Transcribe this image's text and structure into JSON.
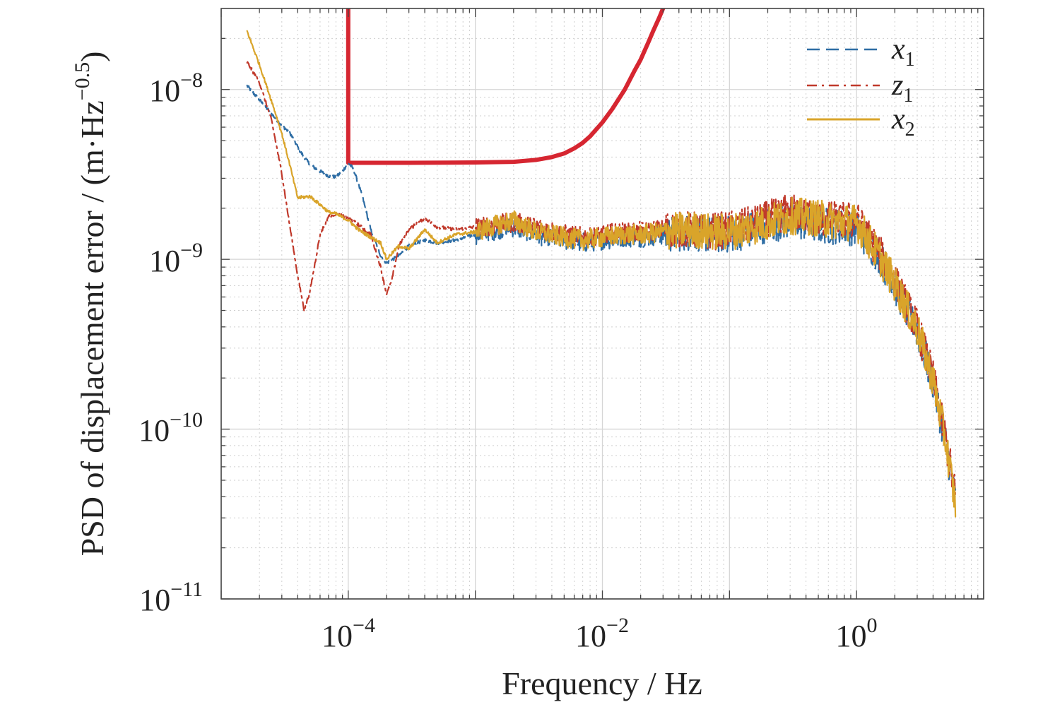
{
  "chart_data": {
    "type": "line",
    "xlabel": "Frequency / Hz",
    "ylabel": "PSD of displacement error / (m·Hz",
    "ylabel_exponent": "−0.5",
    "ylabel_suffix": ")",
    "x_scale": "log",
    "y_scale": "log",
    "xlim": [
      1e-05,
      10
    ],
    "ylim": [
      1e-11,
      3e-08
    ],
    "grid": true,
    "legend_position": "top-right",
    "x_ticks": [
      {
        "value": 0.0001,
        "base": "10",
        "exp": "−4"
      },
      {
        "value": 0.01,
        "base": "10",
        "exp": "−2"
      },
      {
        "value": 1,
        "base": "10",
        "exp": "0"
      }
    ],
    "y_ticks": [
      {
        "value": 1e-08,
        "base": "10",
        "exp": "−8"
      },
      {
        "value": 1e-09,
        "base": "10",
        "exp": "−9"
      },
      {
        "value": 1e-10,
        "base": "10",
        "exp": "−10"
      },
      {
        "value": 1e-11,
        "base": "10",
        "exp": "−11"
      }
    ],
    "series": [
      {
        "name": "x",
        "subscript": "1",
        "color": "#2e6da4",
        "style": "dashed",
        "x": [
          1.6e-05,
          2.2e-05,
          2.8e-05,
          3.5e-05,
          4.2e-05,
          5e-05,
          6e-05,
          7e-05,
          8e-05,
          9e-05,
          0.0001,
          0.00011,
          0.00013,
          0.00015,
          0.00018,
          0.0002,
          0.00025,
          0.0003,
          0.0004,
          0.0005,
          0.0007,
          0.001,
          0.0015,
          0.002,
          0.003,
          0.005,
          0.007,
          0.01,
          0.015,
          0.02,
          0.03,
          0.05,
          0.07,
          0.1,
          0.15,
          0.2,
          0.3,
          0.5,
          0.7,
          1.0,
          1.2,
          1.5,
          2,
          3,
          4,
          5,
          6
        ],
        "y": [
          1.05e-08,
          8e-09,
          6.5e-09,
          5.5e-09,
          4.3e-09,
          3.6e-09,
          3.3e-09,
          3.1e-09,
          3.05e-09,
          3.3e-09,
          3.7e-09,
          3.4e-09,
          2.3e-09,
          1.5e-09,
          1.05e-09,
          9.5e-10,
          1.05e-09,
          1.2e-09,
          1.3e-09,
          1.25e-09,
          1.3e-09,
          1.4e-09,
          1.5e-09,
          1.55e-09,
          1.4e-09,
          1.3e-09,
          1.25e-09,
          1.3e-09,
          1.35e-09,
          1.35e-09,
          1.4e-09,
          1.45e-09,
          1.4e-09,
          1.4e-09,
          1.5e-09,
          1.6e-09,
          1.7e-09,
          1.6e-09,
          1.55e-09,
          1.55e-09,
          1.3e-09,
          1.05e-09,
          7e-10,
          3.8e-10,
          1.9e-10,
          8.5e-11,
          3.8e-11
        ]
      },
      {
        "name": "z",
        "subscript": "1",
        "color": "#c0392b",
        "style": "dashdot",
        "x": [
          1.6e-05,
          2e-05,
          2.5e-05,
          3e-05,
          3.5e-05,
          4e-05,
          4.5e-05,
          5e-05,
          6e-05,
          7e-05,
          8e-05,
          0.0001,
          0.00012,
          0.00015,
          0.00018,
          0.0002,
          0.00022,
          0.00025,
          0.0003,
          0.0004,
          0.0005,
          0.0007,
          0.001,
          0.0015,
          0.002,
          0.003,
          0.005,
          0.007,
          0.01,
          0.015,
          0.02,
          0.03,
          0.05,
          0.07,
          0.1,
          0.15,
          0.2,
          0.3,
          0.5,
          0.7,
          1.0,
          1.2,
          1.5,
          2,
          3,
          4,
          5,
          6
        ],
        "y": [
          1.45e-08,
          1.1e-08,
          6.5e-09,
          3.2e-09,
          1.5e-09,
          8e-10,
          5e-10,
          6.5e-10,
          1.4e-09,
          1.8e-09,
          1.85e-09,
          1.75e-09,
          1.6e-09,
          1.4e-09,
          9e-10,
          6.2e-10,
          7.5e-10,
          1.2e-09,
          1.5e-09,
          1.75e-09,
          1.55e-09,
          1.5e-09,
          1.55e-09,
          1.6e-09,
          1.65e-09,
          1.55e-09,
          1.4e-09,
          1.35e-09,
          1.4e-09,
          1.45e-09,
          1.45e-09,
          1.5e-09,
          1.5e-09,
          1.45e-09,
          1.5e-09,
          1.6e-09,
          1.75e-09,
          1.9e-09,
          1.75e-09,
          1.7e-09,
          1.7e-09,
          1.4e-09,
          1.1e-09,
          7.5e-10,
          4e-10,
          2e-10,
          9e-11,
          4e-11
        ]
      },
      {
        "name": "x",
        "subscript": "2",
        "color": "#d9a42a",
        "style": "solid",
        "x": [
          1.6e-05,
          2e-05,
          2.5e-05,
          3e-05,
          3.5e-05,
          4e-05,
          5e-05,
          6e-05,
          7e-05,
          8e-05,
          0.0001,
          0.00012,
          0.00015,
          0.00018,
          0.0002,
          0.00025,
          0.0003,
          0.0004,
          0.0005,
          0.0007,
          0.001,
          0.0015,
          0.002,
          0.003,
          0.005,
          0.007,
          0.01,
          0.015,
          0.02,
          0.03,
          0.05,
          0.07,
          0.1,
          0.15,
          0.2,
          0.3,
          0.5,
          0.7,
          1.0,
          1.2,
          1.5,
          2,
          3,
          4,
          5,
          6
        ],
        "y": [
          2.2e-08,
          1.4e-08,
          8.5e-09,
          5.5e-09,
          3.5e-09,
          2.3e-09,
          2.35e-09,
          2.1e-09,
          1.9e-09,
          1.85e-09,
          1.7e-09,
          1.5e-09,
          1.35e-09,
          1.25e-09,
          1e-09,
          1.2e-09,
          1.15e-09,
          1.5e-09,
          1.25e-09,
          1.4e-09,
          1.45e-09,
          1.6e-09,
          1.7e-09,
          1.45e-09,
          1.35e-09,
          1.3e-09,
          1.35e-09,
          1.4e-09,
          1.4e-09,
          1.45e-09,
          1.5e-09,
          1.45e-09,
          1.45e-09,
          1.55e-09,
          1.65e-09,
          1.8e-09,
          1.75e-09,
          1.65e-09,
          1.65e-09,
          1.35e-09,
          1.05e-09,
          7.2e-10,
          3.9e-10,
          1.95e-10,
          8.7e-11,
          3.6e-11
        ]
      },
      {
        "name": "",
        "subscript": "",
        "color": "#d62631",
        "style": "solid-thick",
        "x": [
          0.0001,
          0.0001,
          0.0003,
          0.001,
          0.002,
          0.003,
          0.004,
          0.005,
          0.006,
          0.007,
          0.008,
          0.01,
          0.012,
          0.015,
          0.018,
          0.02,
          0.023,
          0.025,
          0.028,
          0.03
        ],
        "y": [
          3e-08,
          3.7e-09,
          3.7e-09,
          3.72e-09,
          3.75e-09,
          3.85e-09,
          4e-09,
          4.2e-09,
          4.5e-09,
          4.85e-09,
          5.3e-09,
          6.4e-09,
          7.7e-09,
          1e-08,
          1.3e-08,
          1.5e-08,
          1.9e-08,
          2.2e-08,
          2.65e-08,
          3e-08
        ]
      }
    ]
  }
}
